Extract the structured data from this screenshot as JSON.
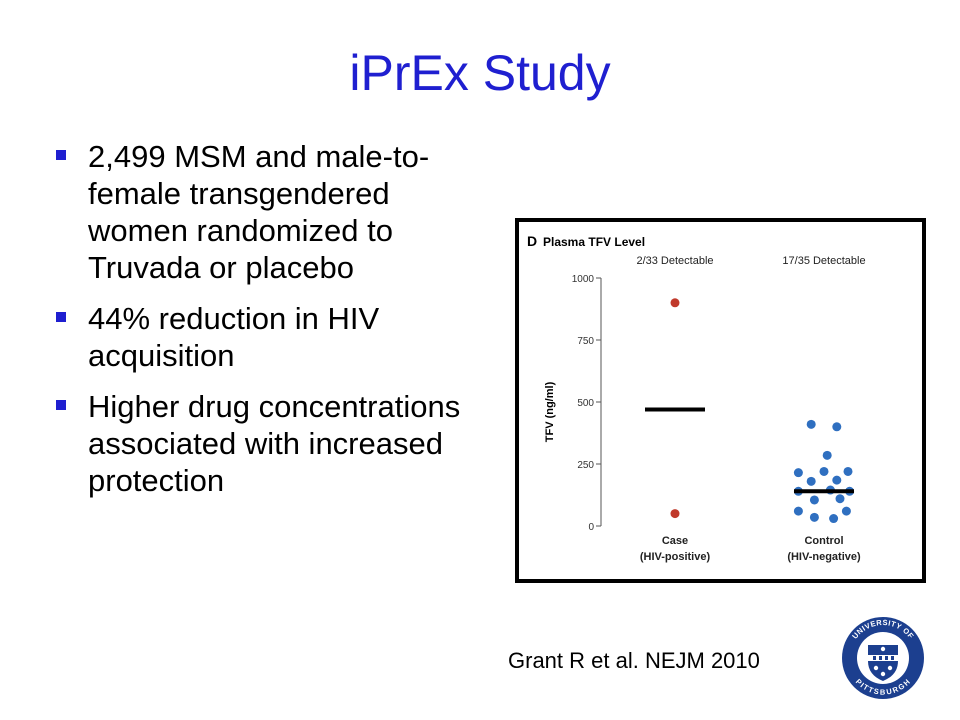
{
  "slide": {
    "title": "iPrEx Study",
    "bullets": [
      "2,499 MSM and male-to-female transgendered women randomized to Truvada or placebo",
      "44% reduction in HIV acquisition",
      "Higher drug concentrations associated with increased protection"
    ],
    "citation": "Grant R et al. NEJM 2010",
    "seal": {
      "text_top": "UNIVERSITY OF",
      "text_bottom": "PITTSBURGH",
      "color": "#1c3f8f"
    }
  },
  "chart_data": {
    "type": "scatter",
    "panel_label": "D",
    "title": "Plasma TFV Level",
    "ylabel": "TFV (ng/ml)",
    "ylim": [
      0,
      1000
    ],
    "yticks": [
      0,
      250,
      500,
      750,
      1000
    ],
    "grid": false,
    "categories": [
      "Case\n(HIV-positive)",
      "Control\n(HIV-negative)"
    ],
    "annotations": [
      "2/33 Detectable",
      "17/35 Detectable"
    ],
    "series": [
      {
        "category": 0,
        "color": "#c0392b",
        "median": 470,
        "points": [
          [
            0,
            900
          ],
          [
            0,
            50
          ]
        ]
      },
      {
        "category": 1,
        "color": "#2f6fc0",
        "median": 140,
        "points": [
          [
            -0.08,
            410
          ],
          [
            0.08,
            400
          ],
          [
            0.02,
            285
          ],
          [
            -0.16,
            215
          ],
          [
            0.0,
            220
          ],
          [
            0.15,
            220
          ],
          [
            -0.08,
            180
          ],
          [
            0.08,
            185
          ],
          [
            -0.16,
            140
          ],
          [
            0.04,
            145
          ],
          [
            0.16,
            140
          ],
          [
            -0.06,
            105
          ],
          [
            0.1,
            110
          ],
          [
            -0.16,
            60
          ],
          [
            0.14,
            60
          ],
          [
            -0.06,
            35
          ],
          [
            0.06,
            30
          ]
        ]
      }
    ]
  }
}
